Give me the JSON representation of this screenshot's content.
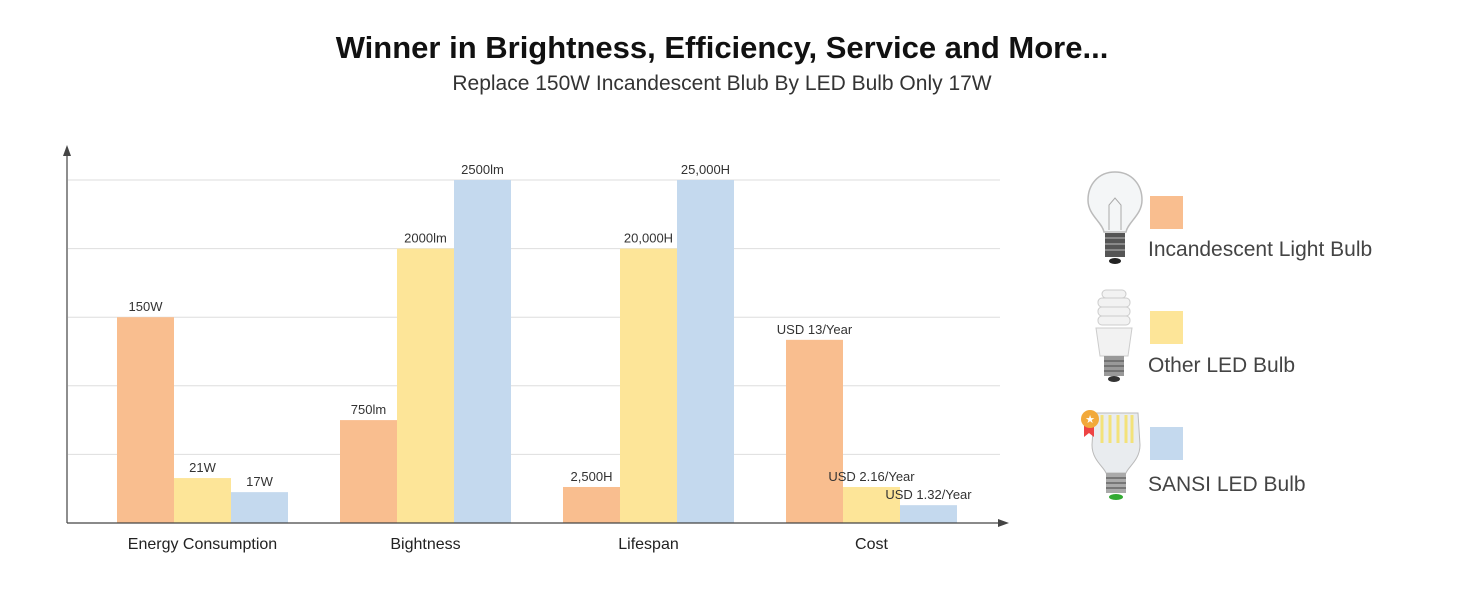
{
  "header": {
    "title": "Winner in Brightness, Efficiency, Service and More...",
    "subtitle": "Replace 150W Incandescent Blub By LED Bulb Only 17W"
  },
  "chart_data": {
    "type": "bar",
    "title": "Winner in Brightness, Efficiency, Service and More...",
    "subtitle": "Replace 150W Incandescent Blub By LED Bulb Only 17W",
    "xlabel": "",
    "ylabel": "",
    "grid": true,
    "legend_position": "right",
    "y_axis_ticks": "none (each category scaled independently; bar level given as fraction of top gridline)",
    "categories": [
      "Energy Consumption",
      "Bightness",
      "Lifespan",
      "Cost"
    ],
    "series": [
      {
        "name": "Incandescent Light Bulb",
        "color": "#F9BE8F",
        "values": [
          150,
          750,
          2500,
          13
        ],
        "labels": [
          "150W",
          "750lm",
          "2,500H",
          "USD 13/Year"
        ],
        "levels": [
          0.6,
          0.3,
          0.105,
          0.534
        ]
      },
      {
        "name": "Other LED Bulb",
        "color": "#FDE598",
        "values": [
          21,
          2000,
          20000,
          2.16
        ],
        "labels": [
          "21W",
          "2000lm",
          "20,000H",
          "USD 2.16/Year"
        ],
        "levels": [
          0.131,
          0.8,
          0.8,
          0.105
        ]
      },
      {
        "name": "SANSI LED Bulb",
        "color": "#C4D9EE",
        "values": [
          17,
          2500,
          25000,
          1.32
        ],
        "labels": [
          "17W",
          "2500lm",
          "25,000H",
          "USD 1.32/Year"
        ],
        "levels": [
          0.09,
          1.0,
          1.0,
          0.052
        ]
      }
    ]
  },
  "legend": {
    "items": [
      {
        "label": "Incandescent Light Bulb",
        "icon": "incandescent-bulb-icon"
      },
      {
        "label": "Other LED Bulb",
        "icon": "spiral-bulb-icon"
      },
      {
        "label": "SANSI LED Bulb",
        "icon": "sansi-led-bulb-icon"
      }
    ]
  }
}
